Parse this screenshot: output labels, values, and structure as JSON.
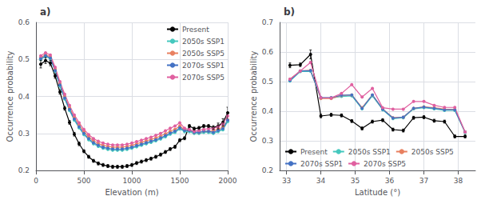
{
  "chart_data": [
    {
      "type": "line",
      "title": "a)",
      "xlabel": "Elevation (m)",
      "ylabel": "Occurrence probability",
      "x": [
        50,
        100,
        150,
        200,
        250,
        300,
        350,
        400,
        450,
        500,
        550,
        600,
        650,
        700,
        750,
        800,
        850,
        900,
        950,
        1000,
        1050,
        1100,
        1150,
        1200,
        1250,
        1300,
        1350,
        1400,
        1450,
        1500,
        1550,
        1600,
        1650,
        1700,
        1750,
        1800,
        1850,
        1900,
        1950,
        2000
      ],
      "xlim": [
        0,
        2000
      ],
      "xticks": [
        0,
        500,
        1000,
        1500,
        2000
      ],
      "ylim": [
        0.2,
        0.6
      ],
      "yticks": [
        0.2,
        0.3,
        0.4,
        0.5,
        0.6
      ],
      "grid": true,
      "legend": "upper right",
      "series": [
        {
          "name": "Present",
          "color": "#000000",
          "marker": "circle",
          "values": [
            0.487,
            0.497,
            0.49,
            0.455,
            0.412,
            0.368,
            0.33,
            0.298,
            0.272,
            0.252,
            0.237,
            0.226,
            0.219,
            0.215,
            0.212,
            0.21,
            0.21,
            0.21,
            0.212,
            0.215,
            0.22,
            0.224,
            0.228,
            0.232,
            0.237,
            0.243,
            0.25,
            0.258,
            0.264,
            0.282,
            0.287,
            0.32,
            0.313,
            0.315,
            0.32,
            0.32,
            0.316,
            0.32,
            0.33,
            0.356
          ],
          "errors": [
            0.01,
            0.008,
            0.007,
            0.006,
            0.006,
            0.005,
            0.005,
            0.005,
            0.005,
            0.004,
            0.004,
            0.004,
            0.004,
            0.004,
            0.004,
            0.004,
            0.004,
            0.004,
            0.004,
            0.004,
            0.004,
            0.004,
            0.004,
            0.004,
            0.004,
            0.004,
            0.004,
            0.004,
            0.004,
            0.004,
            0.004,
            0.004,
            0.004,
            0.004,
            0.004,
            0.004,
            0.005,
            0.008,
            0.01,
            0.015
          ]
        },
        {
          "name": "2050s SSP1",
          "color": "#45c8be",
          "marker": "circle",
          "values": [
            0.5,
            0.508,
            0.502,
            0.468,
            0.428,
            0.393,
            0.362,
            0.336,
            0.315,
            0.297,
            0.283,
            0.272,
            0.265,
            0.26,
            0.257,
            0.255,
            0.255,
            0.255,
            0.257,
            0.26,
            0.264,
            0.268,
            0.272,
            0.276,
            0.28,
            0.285,
            0.291,
            0.298,
            0.303,
            0.312,
            0.305,
            0.305,
            0.3,
            0.3,
            0.303,
            0.303,
            0.3,
            0.305,
            0.31,
            0.332
          ]
        },
        {
          "name": "2050s SSP5",
          "color": "#e88060",
          "marker": "circle",
          "values": [
            0.505,
            0.513,
            0.507,
            0.474,
            0.435,
            0.4,
            0.37,
            0.344,
            0.323,
            0.305,
            0.291,
            0.28,
            0.273,
            0.268,
            0.265,
            0.263,
            0.263,
            0.263,
            0.265,
            0.268,
            0.272,
            0.276,
            0.28,
            0.284,
            0.288,
            0.293,
            0.299,
            0.306,
            0.311,
            0.32,
            0.31,
            0.308,
            0.303,
            0.303,
            0.306,
            0.306,
            0.307,
            0.312,
            0.317,
            0.337
          ]
        },
        {
          "name": "2070s SSP1",
          "color": "#4472c4",
          "marker": "circle",
          "values": [
            0.502,
            0.51,
            0.504,
            0.47,
            0.431,
            0.396,
            0.365,
            0.339,
            0.318,
            0.3,
            0.286,
            0.275,
            0.268,
            0.263,
            0.26,
            0.258,
            0.258,
            0.258,
            0.26,
            0.263,
            0.267,
            0.271,
            0.275,
            0.279,
            0.283,
            0.288,
            0.294,
            0.301,
            0.306,
            0.315,
            0.308,
            0.308,
            0.303,
            0.303,
            0.306,
            0.306,
            0.303,
            0.308,
            0.313,
            0.336
          ]
        },
        {
          "name": "2070s SSP5",
          "color": "#e060a0",
          "marker": "circle",
          "values": [
            0.51,
            0.518,
            0.512,
            0.479,
            0.44,
            0.406,
            0.376,
            0.35,
            0.329,
            0.311,
            0.297,
            0.286,
            0.279,
            0.274,
            0.271,
            0.269,
            0.269,
            0.269,
            0.271,
            0.274,
            0.278,
            0.282,
            0.286,
            0.29,
            0.295,
            0.3,
            0.307,
            0.314,
            0.32,
            0.329,
            0.314,
            0.311,
            0.306,
            0.308,
            0.311,
            0.313,
            0.313,
            0.318,
            0.326,
            0.347
          ]
        }
      ]
    },
    {
      "type": "line",
      "title": "b)",
      "xlabel": "Latitude (°)",
      "ylabel": "Occurrence probability",
      "x": [
        33.1,
        33.4,
        33.7,
        34.0,
        34.3,
        34.6,
        34.9,
        35.2,
        35.5,
        35.8,
        36.1,
        36.4,
        36.7,
        37.0,
        37.3,
        37.6,
        37.9,
        38.2
      ],
      "xlim": [
        32.8,
        38.5
      ],
      "xticks": [
        33,
        34,
        35,
        36,
        37,
        38
      ],
      "ylim": [
        0.2,
        0.7
      ],
      "yticks": [
        0.2,
        0.3,
        0.4,
        0.5,
        0.6,
        0.7
      ],
      "grid": true,
      "legend": "lower left",
      "series": [
        {
          "name": "Present",
          "color": "#000000",
          "marker": "circle",
          "values": [
            0.555,
            0.557,
            0.592,
            0.384,
            0.388,
            0.386,
            0.367,
            0.342,
            0.365,
            0.37,
            0.338,
            0.335,
            0.378,
            0.38,
            0.368,
            0.365,
            0.315,
            0.315
          ],
          "errors": [
            0.008,
            0.006,
            0.015,
            0.006,
            0.005,
            0.005,
            0.005,
            0.005,
            0.005,
            0.005,
            0.005,
            0.005,
            0.005,
            0.005,
            0.005,
            0.005,
            0.005,
            0.005
          ]
        },
        {
          "name": "2050s SSP1",
          "color": "#45c8be",
          "marker": "circle",
          "values": [
            0.502,
            0.534,
            0.535,
            0.445,
            0.445,
            0.45,
            0.452,
            0.408,
            0.452,
            0.405,
            0.375,
            0.378,
            0.408,
            0.412,
            0.408,
            0.403,
            0.403,
            0.328
          ]
        },
        {
          "name": "2050s SSP5",
          "color": "#e88060",
          "marker": "circle",
          "values": [
            0.508,
            0.536,
            0.538,
            0.443,
            0.443,
            0.453,
            0.455,
            0.412,
            0.455,
            0.408,
            0.378,
            0.38,
            0.41,
            0.415,
            0.412,
            0.407,
            0.406,
            0.33
          ]
        },
        {
          "name": "2070s SSP1",
          "color": "#4472c4",
          "marker": "circle",
          "values": [
            0.504,
            0.536,
            0.537,
            0.446,
            0.446,
            0.454,
            0.455,
            0.41,
            0.455,
            0.407,
            0.377,
            0.38,
            0.41,
            0.414,
            0.41,
            0.405,
            0.405,
            0.33
          ]
        },
        {
          "name": "2070s SSP5",
          "color": "#e060a0",
          "marker": "circle",
          "values": [
            0.508,
            0.536,
            0.565,
            0.446,
            0.445,
            0.46,
            0.49,
            0.448,
            0.477,
            0.412,
            0.407,
            0.407,
            0.433,
            0.433,
            0.42,
            0.413,
            0.413,
            0.33
          ]
        }
      ]
    }
  ]
}
